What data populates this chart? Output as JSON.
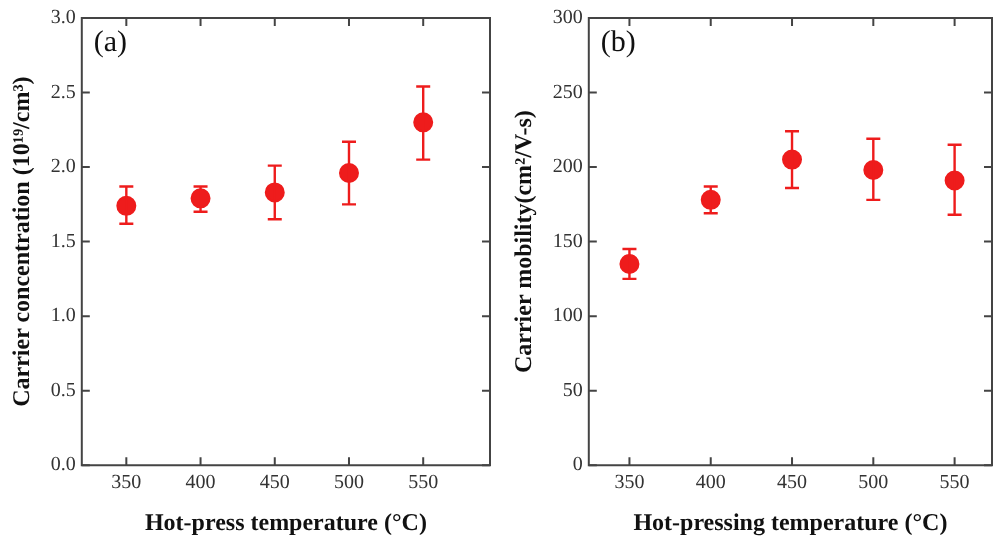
{
  "chart_data": [
    {
      "type": "scatter",
      "annotations": [
        "(a)"
      ],
      "xlabel": "Hot-press temperature (°C)",
      "ylabel": "Carrier concentration (10¹⁹/cm³)",
      "x": [
        350,
        400,
        450,
        500,
        550
      ],
      "xlim": [
        320,
        595
      ],
      "xticks": [
        350,
        400,
        450,
        500,
        550
      ],
      "ylim": [
        0,
        3
      ],
      "yticks": [
        {
          "value": 0,
          "label": "0.0"
        },
        0.5,
        {
          "value": 1,
          "label": "1.0"
        },
        1.5,
        {
          "value": 2,
          "label": "2.0"
        },
        2.5,
        {
          "value": 3,
          "label": "3.0"
        }
      ],
      "series": [
        {
          "color": "#ee1c1c",
          "values": [
            1.74,
            1.79,
            1.83,
            1.96,
            2.3
          ],
          "errors": [
            [
              1.62,
              1.87
            ],
            [
              1.7,
              1.87
            ],
            [
              1.65,
              2.01
            ],
            [
              1.75,
              2.17
            ],
            [
              2.05,
              2.54
            ]
          ]
        }
      ],
      "marker": "circle",
      "grid": false,
      "legend": false
    },
    {
      "type": "scatter",
      "annotations": [
        "(b)"
      ],
      "xlabel": "Hot-pressing temperature (°C)",
      "ylabel": "Carrier mobility(cm²/V-s)",
      "x": [
        350,
        400,
        450,
        500,
        550
      ],
      "xlim": [
        325,
        573
      ],
      "xticks": [
        350,
        400,
        450,
        500,
        550
      ],
      "ylim": [
        0,
        300
      ],
      "yticks": [
        0,
        50,
        100,
        150,
        200,
        250,
        300
      ],
      "series": [
        {
          "color": "#ee1c1c",
          "values": [
            135,
            178,
            205,
            198,
            191
          ],
          "errors": [
            [
              125,
              145
            ],
            [
              169,
              187
            ],
            [
              186,
              224
            ],
            [
              178,
              219
            ],
            [
              168,
              215
            ]
          ]
        }
      ],
      "marker": "circle",
      "grid": false,
      "legend": false
    }
  ]
}
